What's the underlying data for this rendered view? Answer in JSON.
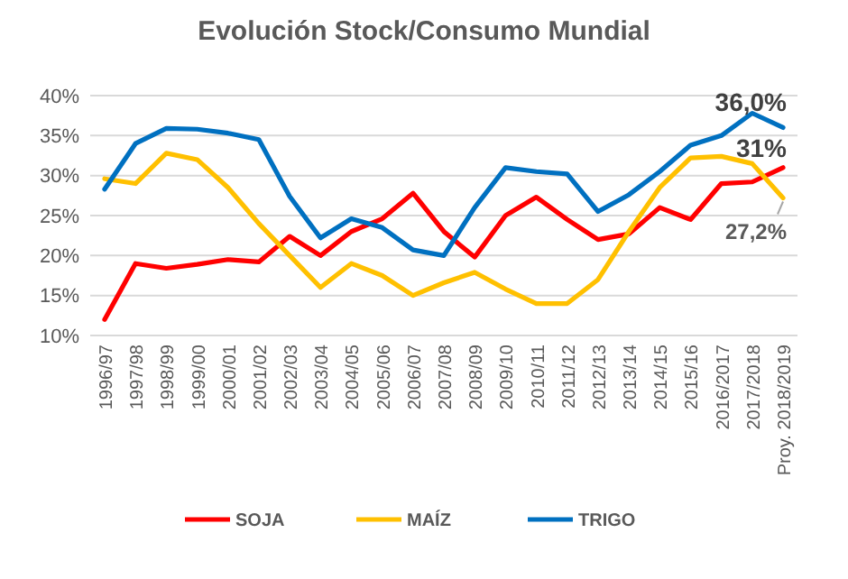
{
  "chart_data": {
    "type": "line",
    "title": "Evolución Stock/Consumo Mundial",
    "categories": [
      "1996/97",
      "1997/98",
      "1998/99",
      "1999/00",
      "2000/01",
      "2001/02",
      "2002/03",
      "2003/04",
      "2004/05",
      "2005/06",
      "2006/07",
      "2007/08",
      "2008/09",
      "2009/10",
      "2010/11",
      "2011/12",
      "2012/13",
      "2013/14",
      "2014/15",
      "2015/16",
      "2016/2017",
      "2017/2018",
      "Proy. 2018/2019"
    ],
    "series": [
      {
        "name": "SOJA",
        "color": "#ff0000",
        "values": [
          12,
          19,
          18.4,
          18.9,
          19.5,
          19.2,
          22.4,
          20,
          23,
          24.6,
          27.8,
          23,
          19.8,
          25,
          27.3,
          24.5,
          22,
          22.7,
          26,
          24.5,
          29,
          29.2,
          31
        ],
        "value_labels": [
          null,
          null,
          null,
          null,
          null,
          null,
          null,
          null,
          null,
          null,
          null,
          null,
          null,
          null,
          null,
          null,
          null,
          null,
          null,
          null,
          null,
          null,
          "31%"
        ]
      },
      {
        "name": "MAÍZ",
        "color": "#ffc000",
        "values": [
          29.6,
          29,
          32.8,
          32,
          28.5,
          24,
          20,
          16,
          19,
          17.5,
          15,
          16.6,
          17.9,
          15.8,
          14,
          14,
          17,
          23,
          28.5,
          32.2,
          32.4,
          31.5,
          27.2
        ],
        "value_labels": [
          null,
          null,
          null,
          null,
          null,
          null,
          null,
          null,
          null,
          null,
          null,
          null,
          null,
          null,
          null,
          null,
          null,
          null,
          null,
          null,
          null,
          null,
          "27,2%"
        ]
      },
      {
        "name": "TRIGO",
        "color": "#0070c0",
        "values": [
          28.3,
          34,
          35.9,
          35.8,
          35.3,
          34.5,
          27.4,
          22.2,
          24.6,
          23.5,
          20.7,
          20,
          26,
          31,
          30.5,
          30.2,
          25.5,
          27.6,
          30.5,
          33.8,
          35,
          37.8,
          36.0
        ],
        "value_labels": [
          null,
          null,
          null,
          null,
          null,
          null,
          null,
          null,
          null,
          null,
          null,
          null,
          null,
          null,
          null,
          null,
          null,
          null,
          null,
          null,
          null,
          null,
          "36,0%"
        ]
      }
    ],
    "ylim": [
      10,
      40
    ],
    "yticks": [
      {
        "value": 10,
        "label": "10%"
      },
      {
        "value": 15,
        "label": "15%"
      },
      {
        "value": 20,
        "label": "20%"
      },
      {
        "value": 25,
        "label": "25%"
      },
      {
        "value": 30,
        "label": "30%"
      },
      {
        "value": 35,
        "label": "35%"
      },
      {
        "value": 40,
        "label": "40%"
      }
    ],
    "grid": "y",
    "legend": "bottom",
    "marker": "none",
    "line_style": "solid"
  }
}
